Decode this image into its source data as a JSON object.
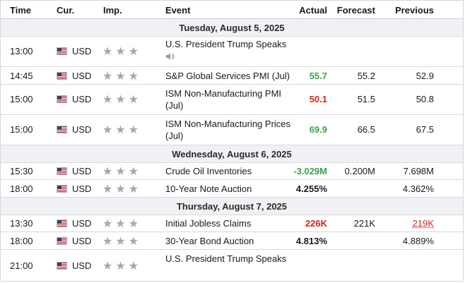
{
  "headers": {
    "time": "Time",
    "cur": "Cur.",
    "imp": "Imp.",
    "event": "Event",
    "actual": "Actual",
    "forecast": "Forecast",
    "previous": "Previous"
  },
  "dates": [
    "Tuesday, August 5, 2025",
    "Wednesday, August 6, 2025",
    "Thursday, August 7, 2025"
  ],
  "stars": "★★★",
  "speaker_icon": "speaker-icon",
  "rows": [
    {
      "time": "13:00",
      "cur": "USD",
      "ev1": "U.S. President Trump Speaks",
      "ev2": "",
      "actual": "",
      "forecast": "",
      "previous": ""
    },
    {
      "time": "14:45",
      "cur": "USD",
      "ev1": "S&P Global Services PMI (Jul)",
      "ev2": "",
      "actual": "55.7",
      "forecast": "55.2",
      "previous": "52.9"
    },
    {
      "time": "15:00",
      "cur": "USD",
      "ev1": "ISM Non-Manufacturing PMI",
      "ev2": "(Jul)",
      "actual": "50.1",
      "forecast": "51.5",
      "previous": "50.8"
    },
    {
      "time": "15:00",
      "cur": "USD",
      "ev1": "ISM Non-Manufacturing Prices",
      "ev2": "(Jul)",
      "actual": "69.9",
      "forecast": "66.5",
      "previous": "67.5"
    },
    {
      "time": "15:30",
      "cur": "USD",
      "ev1": "Crude Oil Inventories",
      "ev2": "",
      "actual": "-3.029M",
      "forecast": "0.200M",
      "previous": "7.698M"
    },
    {
      "time": "18:00",
      "cur": "USD",
      "ev1": "10-Year Note Auction",
      "ev2": "",
      "actual": "4.255%",
      "forecast": "",
      "previous": "4.362%"
    },
    {
      "time": "13:30",
      "cur": "USD",
      "ev1": "Initial Jobless Claims",
      "ev2": "",
      "actual": "226K",
      "forecast": "221K",
      "previous": "219K"
    },
    {
      "time": "18:00",
      "cur": "USD",
      "ev1": "30-Year Bond Auction",
      "ev2": "",
      "actual": "4.813%",
      "forecast": "",
      "previous": "4.889%"
    },
    {
      "time": "21:00",
      "cur": "USD",
      "ev1": "U.S. President Trump Speaks",
      "ev2": "",
      "actual": "",
      "forecast": "",
      "previous": ""
    }
  ],
  "colors": {
    "green": "#3aa548",
    "red": "#d7241c",
    "date_bg": "#eff1f4"
  }
}
